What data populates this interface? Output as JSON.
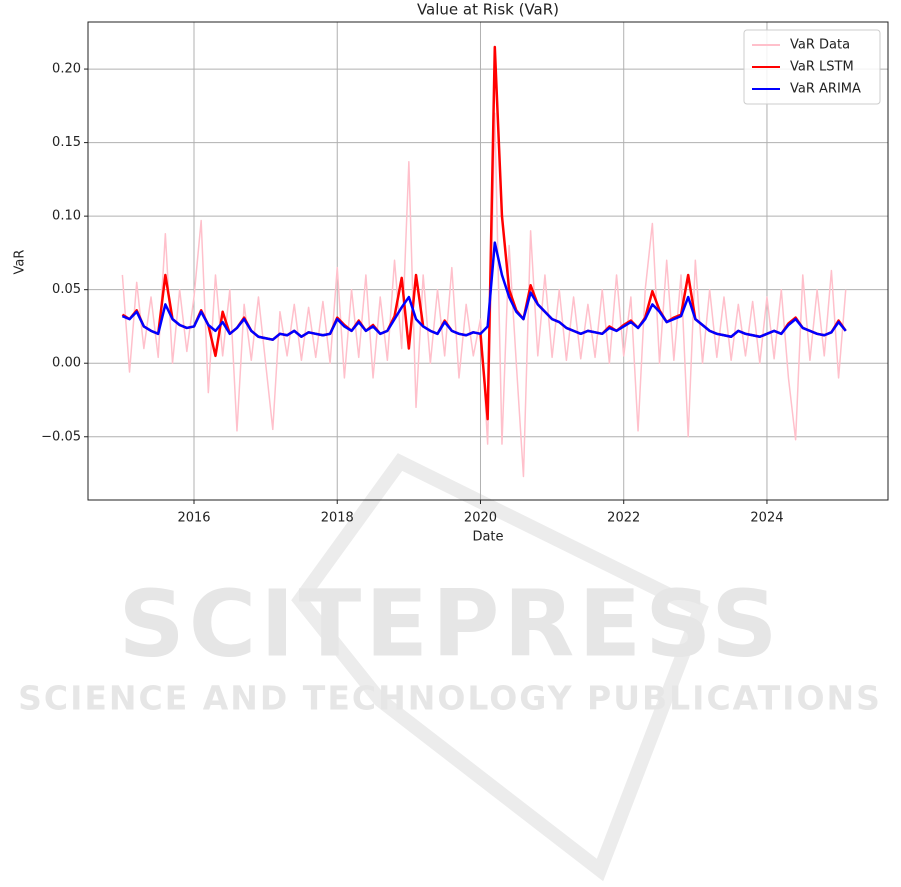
{
  "chart_data": {
    "type": "line",
    "title": "Value at Risk (VaR)",
    "x_label": "Date",
    "y_label": "VaR",
    "x": [
      2015.0,
      2015.1,
      2015.2,
      2015.3,
      2015.4,
      2015.5,
      2015.6,
      2015.7,
      2015.8,
      2015.9,
      2016.0,
      2016.1,
      2016.2,
      2016.3,
      2016.4,
      2016.5,
      2016.6,
      2016.7,
      2016.8,
      2016.9,
      2017.0,
      2017.1,
      2017.2,
      2017.3,
      2017.4,
      2017.5,
      2017.6,
      2017.7,
      2017.8,
      2017.9,
      2018.0,
      2018.1,
      2018.2,
      2018.3,
      2018.4,
      2018.5,
      2018.6,
      2018.7,
      2018.8,
      2018.9,
      2019.0,
      2019.1,
      2019.2,
      2019.3,
      2019.4,
      2019.5,
      2019.6,
      2019.7,
      2019.8,
      2019.9,
      2020.0,
      2020.1,
      2020.2,
      2020.3,
      2020.4,
      2020.5,
      2020.6,
      2020.7,
      2020.8,
      2020.9,
      2021.0,
      2021.1,
      2021.2,
      2021.3,
      2021.4,
      2021.5,
      2021.6,
      2021.7,
      2021.8,
      2021.9,
      2022.0,
      2022.1,
      2022.2,
      2022.3,
      2022.4,
      2022.5,
      2022.6,
      2022.7,
      2022.8,
      2022.9,
      2023.0,
      2023.1,
      2023.2,
      2023.3,
      2023.4,
      2023.5,
      2023.6,
      2023.7,
      2023.8,
      2023.9,
      2024.0,
      2024.1,
      2024.2,
      2024.3,
      2024.4,
      2024.5,
      2024.6,
      2024.7,
      2024.8,
      2024.9,
      2025.0,
      2025.1
    ],
    "series": [
      {
        "name": "VaR Data",
        "color": "#ffc0cb",
        "width": 1.5,
        "values": [
          0.06,
          -0.006,
          0.055,
          0.01,
          0.045,
          0.004,
          0.088,
          0.0,
          0.05,
          0.008,
          0.045,
          0.097,
          -0.02,
          0.06,
          0.005,
          0.05,
          -0.046,
          0.04,
          0.002,
          0.045,
          0.0,
          -0.045,
          0.035,
          0.005,
          0.04,
          0.002,
          0.038,
          0.004,
          0.042,
          0.0,
          0.065,
          -0.01,
          0.05,
          0.004,
          0.06,
          -0.01,
          0.045,
          0.002,
          0.07,
          0.01,
          0.137,
          -0.03,
          0.06,
          0.0,
          0.05,
          0.005,
          0.065,
          -0.01,
          0.04,
          0.005,
          0.03,
          -0.055,
          0.17,
          -0.055,
          0.08,
          0.0,
          -0.077,
          0.09,
          0.005,
          0.06,
          0.004,
          0.05,
          0.002,
          0.045,
          0.003,
          0.04,
          0.004,
          0.05,
          0.0,
          0.06,
          0.005,
          0.045,
          -0.046,
          0.05,
          0.095,
          0.0,
          0.07,
          0.002,
          0.06,
          -0.05,
          0.07,
          0.0,
          0.05,
          0.004,
          0.045,
          0.002,
          0.04,
          0.005,
          0.042,
          0.0,
          0.045,
          0.003,
          0.05,
          -0.01,
          -0.052,
          0.06,
          0.002,
          0.05,
          0.005,
          0.063,
          -0.01,
          0.05
        ]
      },
      {
        "name": "VaR LSTM",
        "color": "#ff0000",
        "width": 2.5,
        "values": [
          0.033,
          0.03,
          0.036,
          0.025,
          0.022,
          0.02,
          0.06,
          0.03,
          0.026,
          0.024,
          0.025,
          0.036,
          0.026,
          0.005,
          0.035,
          0.02,
          0.024,
          0.031,
          0.022,
          0.018,
          0.017,
          0.016,
          0.02,
          0.019,
          0.022,
          0.018,
          0.021,
          0.02,
          0.019,
          0.02,
          0.031,
          0.026,
          0.022,
          0.029,
          0.022,
          0.026,
          0.02,
          0.022,
          0.032,
          0.058,
          0.01,
          0.06,
          0.025,
          0.022,
          0.02,
          0.029,
          0.022,
          0.02,
          0.019,
          0.021,
          0.02,
          -0.038,
          0.215,
          0.1,
          0.05,
          0.036,
          0.03,
          0.053,
          0.04,
          0.035,
          0.03,
          0.028,
          0.024,
          0.022,
          0.02,
          0.022,
          0.021,
          0.02,
          0.025,
          0.022,
          0.026,
          0.029,
          0.024,
          0.031,
          0.049,
          0.036,
          0.028,
          0.031,
          0.033,
          0.06,
          0.03,
          0.026,
          0.022,
          0.02,
          0.019,
          0.018,
          0.022,
          0.02,
          0.019,
          0.018,
          0.02,
          0.022,
          0.02,
          0.027,
          0.031,
          0.024,
          0.022,
          0.02,
          0.019,
          0.021,
          0.029,
          0.022
        ]
      },
      {
        "name": "VaR ARIMA",
        "color": "#0000ff",
        "width": 2.5,
        "values": [
          0.032,
          0.03,
          0.035,
          0.025,
          0.022,
          0.02,
          0.04,
          0.03,
          0.026,
          0.024,
          0.025,
          0.035,
          0.026,
          0.022,
          0.028,
          0.02,
          0.024,
          0.03,
          0.022,
          0.018,
          0.017,
          0.016,
          0.02,
          0.019,
          0.022,
          0.018,
          0.021,
          0.02,
          0.019,
          0.02,
          0.03,
          0.025,
          0.022,
          0.028,
          0.022,
          0.025,
          0.02,
          0.022,
          0.03,
          0.038,
          0.045,
          0.03,
          0.025,
          0.022,
          0.02,
          0.028,
          0.022,
          0.02,
          0.019,
          0.021,
          0.02,
          0.025,
          0.082,
          0.06,
          0.045,
          0.035,
          0.03,
          0.048,
          0.04,
          0.035,
          0.03,
          0.028,
          0.024,
          0.022,
          0.02,
          0.022,
          0.021,
          0.02,
          0.024,
          0.022,
          0.025,
          0.028,
          0.024,
          0.03,
          0.04,
          0.035,
          0.028,
          0.03,
          0.032,
          0.045,
          0.03,
          0.026,
          0.022,
          0.02,
          0.019,
          0.018,
          0.022,
          0.02,
          0.019,
          0.018,
          0.02,
          0.022,
          0.02,
          0.026,
          0.03,
          0.024,
          0.022,
          0.02,
          0.019,
          0.021,
          0.028,
          0.022
        ]
      }
    ],
    "xlim": [
      2014.52,
      2025.69
    ],
    "xticks": [
      2016,
      2018,
      2020,
      2022,
      2024
    ],
    "ylim": [
      -0.093,
      0.232
    ],
    "yticks": [
      {
        "value": -0.05,
        "label": "−0.05"
      },
      {
        "value": 0,
        "label": "0.00"
      },
      0.05,
      {
        "value": 0.1,
        "label": "0.10"
      },
      0.15,
      {
        "value": 0.2,
        "label": "0.20"
      }
    ],
    "grid": true,
    "legend": "upper right"
  },
  "watermark": {
    "title": "SCITEPRESS",
    "subtitle": "SCIENCE AND TECHNOLOGY PUBLICATIONS"
  }
}
